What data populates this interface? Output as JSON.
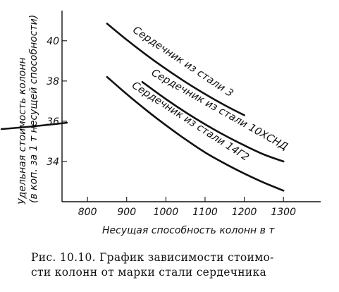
{
  "chart_data": {
    "type": "line",
    "xlabel": "Несущая способность колонн в т",
    "ylabel_lines": [
      "Удельная стоимость колонн",
      "(в коп. за 1 т несущей способности)"
    ],
    "x_ticks": [
      800,
      900,
      1000,
      1100,
      1200,
      1300
    ],
    "y_ticks": [
      34,
      36,
      38,
      40
    ],
    "xlim": [
      735,
      1395
    ],
    "ylim": [
      32.0,
      41.5
    ],
    "grid": false,
    "legend": "labels along curves",
    "series": [
      {
        "name": "Сердечник из стали 3",
        "x": [
          850,
          900,
          950,
          1000,
          1050,
          1100,
          1150,
          1200
        ],
        "y": [
          40.85,
          40.05,
          39.3,
          38.6,
          37.95,
          37.35,
          36.8,
          36.3
        ]
      },
      {
        "name": "Сердечник из стали 10ХСНД",
        "x": [
          940,
          1000,
          1050,
          1100,
          1150,
          1200,
          1250,
          1300
        ],
        "y": [
          37.95,
          37.1,
          36.45,
          35.85,
          35.3,
          34.8,
          34.35,
          34.0
        ]
      },
      {
        "name": "Сердечник из стали 14Г2",
        "x": [
          850,
          900,
          950,
          1000,
          1050,
          1100,
          1150,
          1200,
          1250,
          1300
        ],
        "y": [
          38.2,
          37.35,
          36.55,
          35.8,
          35.1,
          34.45,
          33.9,
          33.4,
          32.95,
          32.55
        ]
      }
    ]
  },
  "caption": {
    "line1": "Рис. 10.10. График зависимости стоимо-",
    "line2": "сти колонн от марки стали сердечника"
  }
}
